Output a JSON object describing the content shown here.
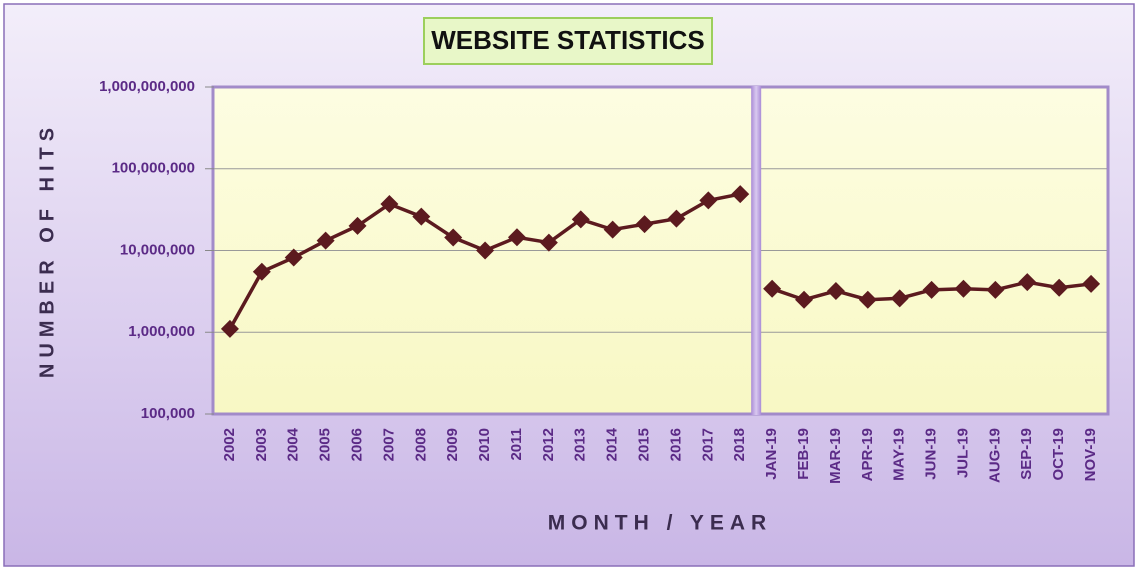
{
  "chart_data": {
    "type": "line",
    "title": "WEBSITE STATISTICS",
    "x_label": "MONTH / YEAR",
    "y_label": "NUMBER OF HITS",
    "yscale": "log",
    "grid": true,
    "categories": [
      "2002",
      "2003",
      "2004",
      "2005",
      "2006",
      "2007",
      "2008",
      "2009",
      "2010",
      "2011",
      "2012",
      "2013",
      "2014",
      "2015",
      "2016",
      "2017",
      "2018",
      "JAN-19",
      "FEB-19",
      "MAR-19",
      "APR-19",
      "MAY-19",
      "JUN-19",
      "JUL-19",
      "AUG-19",
      "SEP-19",
      "OCT-19",
      "NOV-19"
    ],
    "series": [
      {
        "color": "#5c1a1f",
        "values": [
          1100000,
          5500000,
          8200000,
          13200000,
          20000000,
          37000000,
          26000000,
          14400000,
          10000000,
          14500000,
          12500000,
          24000000,
          18000000,
          21000000,
          24500000,
          41000000,
          49000000,
          null,
          null,
          null,
          null,
          null,
          null,
          null,
          null,
          null,
          null,
          null
        ]
      },
      {
        "color": "#5c1a1f",
        "values": [
          null,
          null,
          null,
          null,
          null,
          null,
          null,
          null,
          null,
          null,
          null,
          null,
          null,
          null,
          null,
          null,
          null,
          3400000,
          2500000,
          3200000,
          2500000,
          2600000,
          3300000,
          3400000,
          3300000,
          4100000,
          3500000,
          3900000
        ]
      }
    ],
    "ylim": [
      100000,
      1000000000
    ],
    "yticks": [
      {
        "value": 100000,
        "label": "100,000"
      },
      {
        "value": 1000000,
        "label": "1,000,000"
      },
      {
        "value": 10000000,
        "label": "10,000,000"
      },
      {
        "value": 100000000,
        "label": "100,000,000"
      },
      {
        "value": 1000000000,
        "label": "1,000,000,000"
      }
    ]
  }
}
